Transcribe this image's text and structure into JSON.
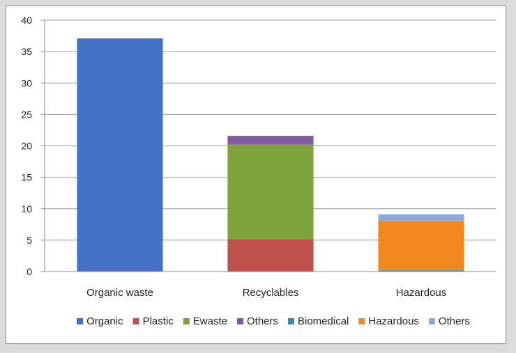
{
  "chart_data": {
    "type": "bar",
    "stacked": true,
    "title": "",
    "xlabel": "",
    "ylabel": "",
    "categories": [
      "Organic waste",
      "Recyclables",
      "Hazardous"
    ],
    "ylim": [
      0,
      40
    ],
    "yticks": [
      "0",
      "5",
      "10",
      "15",
      "20",
      "25",
      "30",
      "35",
      "40"
    ],
    "grid": true,
    "legend_position": "bottom",
    "series": [
      {
        "name": "Organic",
        "color": "#4472c4",
        "values": [
          37.1,
          0,
          0
        ]
      },
      {
        "name": "Plastic",
        "color": "#c0504d",
        "values": [
          0,
          5.1,
          0
        ]
      },
      {
        "name": "Ewaste",
        "color": "#7fa23a",
        "values": [
          0,
          15.1,
          0
        ]
      },
      {
        "name": "Others",
        "color": "#7f5aa2",
        "values": [
          0,
          1.4,
          0
        ]
      },
      {
        "name": "Biomedical",
        "color": "#2f8fb8",
        "values": [
          0,
          0,
          0.2
        ]
      },
      {
        "name": "Hazardous",
        "color": "#f0891e",
        "values": [
          0,
          0,
          7.8
        ]
      },
      {
        "name": "Others",
        "color": "#8eaadb",
        "values": [
          0,
          0,
          1.1
        ]
      }
    ]
  }
}
